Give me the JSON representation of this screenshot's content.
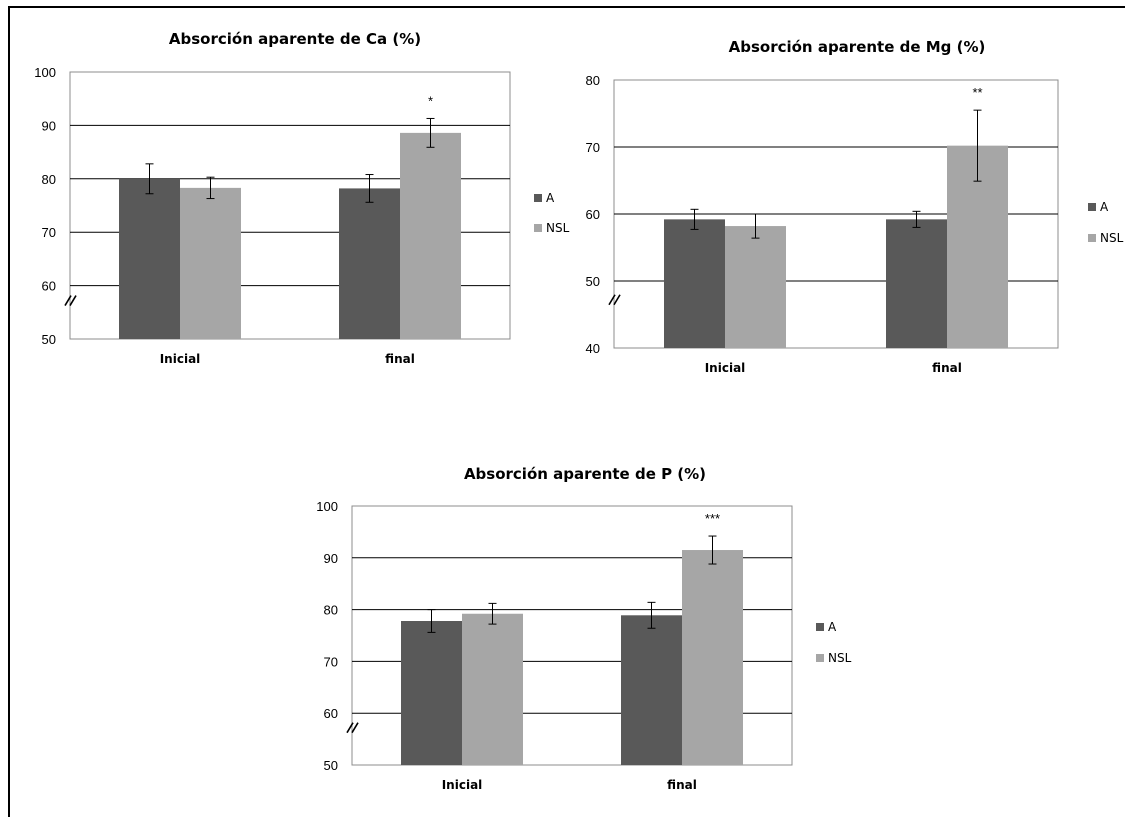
{
  "chart_data": [
    {
      "type": "bar",
      "title": "Absorción aparente de Ca (%)",
      "categories": [
        "Inicial",
        "final"
      ],
      "series": [
        {
          "name": "A",
          "values": [
            80.0,
            78.2
          ],
          "errors": [
            2.8,
            2.6
          ]
        },
        {
          "name": "NSL",
          "values": [
            78.3,
            88.6
          ],
          "errors": [
            2.0,
            2.7
          ]
        }
      ],
      "annotations": [
        "",
        "*"
      ],
      "ylim": [
        50,
        100
      ],
      "yticks": [
        "50",
        "60",
        "70",
        "80",
        "90",
        "100"
      ],
      "axis_break": true,
      "grid": true,
      "legend_position": "right"
    },
    {
      "type": "bar",
      "title": "Absorción aparente de Mg (%)",
      "categories": [
        "Inicial",
        "final"
      ],
      "series": [
        {
          "name": "A",
          "values": [
            59.2,
            59.2
          ],
          "errors": [
            1.5,
            1.2
          ]
        },
        {
          "name": "NSL",
          "values": [
            58.2,
            70.2
          ],
          "errors": [
            1.8,
            5.3
          ]
        }
      ],
      "annotations": [
        "",
        "**"
      ],
      "ylim": [
        40,
        80
      ],
      "yticks": [
        "40",
        "50",
        "60",
        "70",
        "80"
      ],
      "axis_break": true,
      "grid": true,
      "legend_position": "right"
    },
    {
      "type": "bar",
      "title": "Absorción aparente de P (%)",
      "categories": [
        "Inicial",
        "final"
      ],
      "series": [
        {
          "name": "A",
          "values": [
            77.8,
            78.9
          ],
          "errors": [
            2.2,
            2.5
          ]
        },
        {
          "name": "NSL",
          "values": [
            79.2,
            91.5
          ],
          "errors": [
            2.0,
            2.7
          ]
        }
      ],
      "annotations": [
        "",
        "***"
      ],
      "ylim": [
        50,
        100
      ],
      "yticks": [
        "50",
        "60",
        "70",
        "80",
        "90",
        "100"
      ],
      "axis_break": true,
      "grid": true,
      "legend_position": "right"
    }
  ],
  "colors": {
    "A": "#595959",
    "NSL": "#a6a6a6",
    "grid": "#000000",
    "frame": "#8c8c8c"
  }
}
